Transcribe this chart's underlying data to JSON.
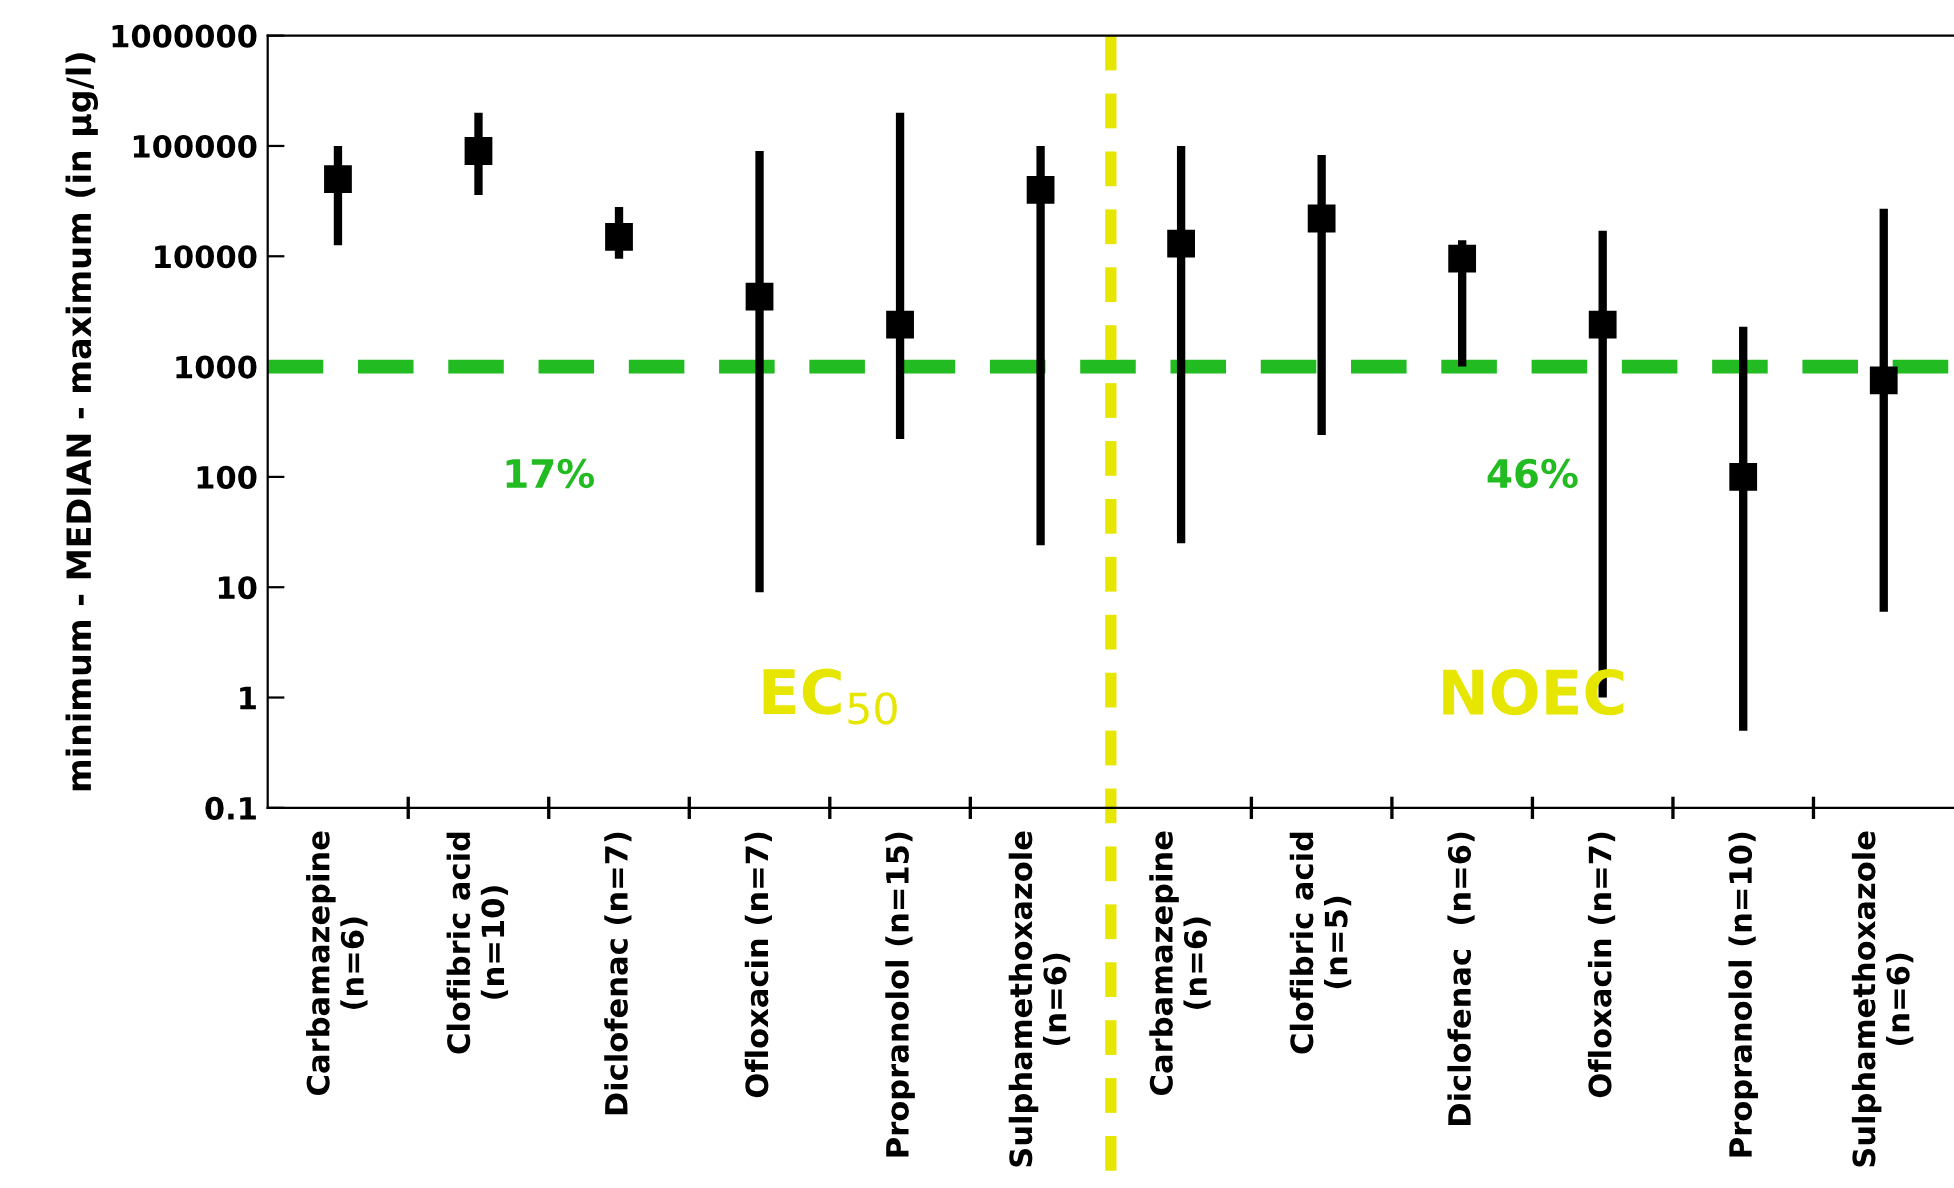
{
  "chart_data": {
    "type": "scatter",
    "ylabel": "minimum - MEDIAN - maximum (in µg/l)",
    "categories": [
      "Carbamazepine\n(n=6)",
      "Clofibric acid\n(n=10)",
      "Diclofenac (n=7)",
      "Ofloxacin (n=7)",
      "Propranolol (n=15)",
      "Sulphamethoxazole\n(n=6)",
      "Carbamazepine\n(n=6)",
      "Clofibric acid\n(n=5)",
      "Diclofenac  (n=6)",
      "Ofloxacin (n=7)",
      "Propranolol (n=10)",
      "Sulphamethoxazole\n(n=6)"
    ],
    "series": [
      {
        "color": "#000000",
        "values": [
          50000,
          90000,
          15000,
          4300,
          2400,
          40000,
          13000,
          22000,
          9500,
          2400,
          100,
          750
        ],
        "errors": [
          [
            12600,
            100000
          ],
          [
            36000,
            200000
          ],
          [
            9500,
            28000
          ],
          [
            9,
            90000
          ],
          [
            220,
            200000
          ],
          [
            24,
            100000
          ],
          [
            25,
            100000
          ],
          [
            240,
            83000
          ],
          [
            1000,
            14000
          ],
          [
            1,
            17000
          ],
          [
            0.5,
            2300
          ],
          [
            6,
            27000
          ]
        ]
      }
    ],
    "marker": "square",
    "log": "y",
    "ylim": [
      0.1,
      1000000
    ],
    "yticks": [
      0.1,
      1,
      10,
      100,
      1000,
      10000,
      100000,
      1000000
    ],
    "grid": false,
    "ref_lines": [
      {
        "axis": "y",
        "value": 1000,
        "color": "#22bb22",
        "line_style": "dashed"
      }
    ],
    "annotations": [
      "17%",
      "46%",
      "EC$_{50}$",
      "NOEC"
    ]
  }
}
